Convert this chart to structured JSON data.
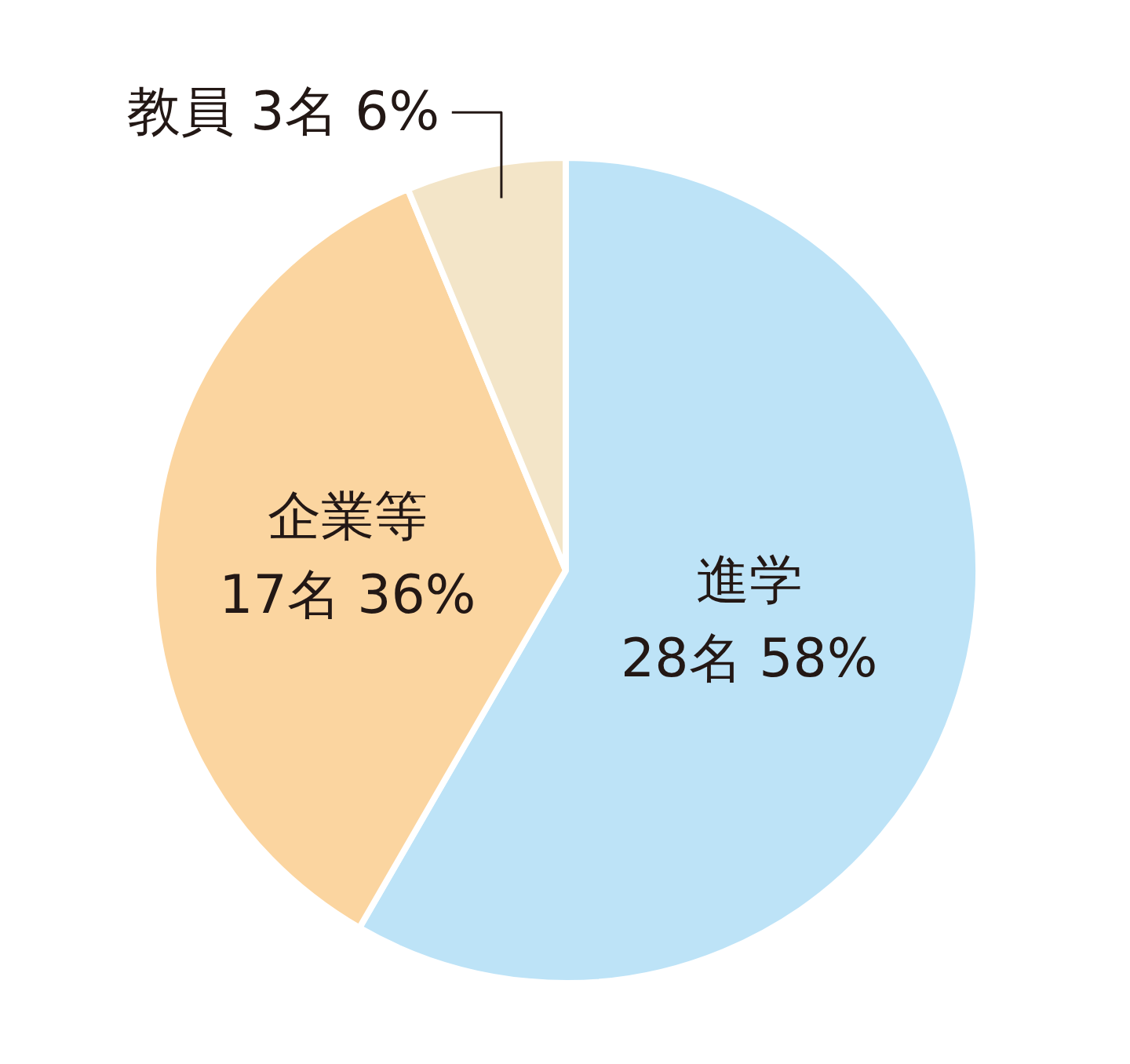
{
  "chart_data": {
    "type": "pie",
    "categories": [
      "進学",
      "企業等",
      "教員"
    ],
    "values": [
      28,
      17,
      3
    ],
    "value_labels": [
      "28名 58%",
      "17名 36%",
      "3名 6%"
    ],
    "colors": [
      "#bde3f7",
      "#fbd5a0",
      "#f3e5c8"
    ]
  }
}
